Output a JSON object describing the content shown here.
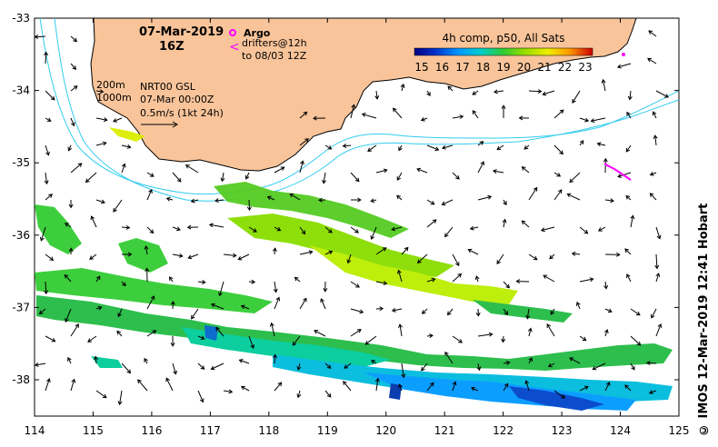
{
  "map": {
    "date": "07-Mar-2019",
    "time": "16Z",
    "layer_title": "4h comp, p50, All Sats",
    "colorbar_ticks": [
      "15",
      "16",
      "17",
      "18",
      "19",
      "20",
      "21",
      "22",
      "23"
    ],
    "legend_argo": "Argo",
    "legend_drifters": "drifters@12h",
    "legend_drifters_to": "to 08/03 12Z",
    "contour_200": "200m",
    "contour_1000": "1000m",
    "product": "NRT00 GSL",
    "product_date": "07-Mar 00:00Z",
    "vector_scale": "0.5m/s (1kt 24h)",
    "x_ticks": [
      "114",
      "115",
      "116",
      "117",
      "118",
      "119",
      "120",
      "121",
      "122",
      "123",
      "124",
      "125"
    ],
    "y_ticks": [
      "-33",
      "-34",
      "-35",
      "-36",
      "-37",
      "-38"
    ],
    "credit": "© IMOS 12-Mar-2019 12:41 Hobart",
    "colors": {
      "land": "#f9c49a",
      "contour": "#33ccee",
      "drifter": "#ff00ff"
    }
  }
}
